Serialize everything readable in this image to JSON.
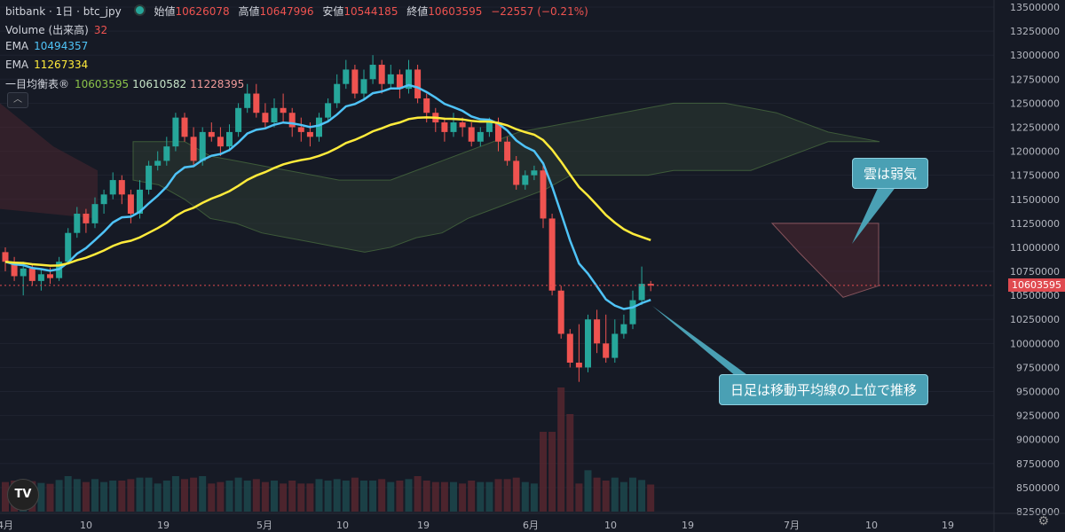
{
  "header": {
    "symbol": "bitbank · 1日 · btc_jpy",
    "open_label": "始値",
    "open": "10626078",
    "high_label": "高値",
    "high": "10647996",
    "low_label": "安値",
    "low": "10544185",
    "close_label": "終値",
    "close": "10603595",
    "change": "−22557 (−0.21%)"
  },
  "indicators": {
    "volume_label": "Volume (出来高)",
    "volume_value": "32",
    "ema1_label": "EMA",
    "ema1_value": "10494357",
    "ema2_label": "EMA",
    "ema2_value": "11267334",
    "ichimoku_label": "一目均衡表®",
    "ichimoku_v1": "10603595",
    "ichimoku_v2": "10610582",
    "ichimoku_v3": "11228395",
    "collapse_icon": "chevron-up-icon"
  },
  "annotations": {
    "cloud": "雲は弱気",
    "daily": "日足は移動平均線の上位で推移"
  },
  "price_tag": "10603595",
  "logo": "TV",
  "colors": {
    "up": "#26a69a",
    "down": "#ef5350",
    "ema_fast": "#4fc3f7",
    "ema_slow": "#ffeb3b",
    "callout": "#4aa0b4"
  },
  "chart_data": {
    "type": "candlestick",
    "yaxis_ticks": [
      "13500000",
      "13250000",
      "13000000",
      "12750000",
      "12500000",
      "12250000",
      "12000000",
      "11750000",
      "11500000",
      "11250000",
      "11000000",
      "10750000",
      "10500000",
      "10250000",
      "10000000",
      "9750000",
      "9500000",
      "9250000",
      "9000000",
      "8750000",
      "8500000",
      "8250000"
    ],
    "xaxis_ticks": [
      "4月",
      "10",
      "19",
      "5月",
      "10",
      "19",
      "6月",
      "10",
      "19",
      "7月",
      "10",
      "19"
    ],
    "ylim": [
      8250000,
      13500000
    ],
    "candles": [
      [
        10950000,
        10850000,
        11000000,
        10750000
      ],
      [
        10850000,
        10700000,
        10900000,
        10650000
      ],
      [
        10700000,
        10780000,
        10850000,
        10500000
      ],
      [
        10780000,
        10650000,
        10820000,
        10600000
      ],
      [
        10650000,
        10720000,
        10780000,
        10550000
      ],
      [
        10720000,
        10680000,
        10790000,
        10620000
      ],
      [
        10680000,
        10850000,
        10900000,
        10650000
      ],
      [
        10850000,
        11150000,
        11200000,
        10820000
      ],
      [
        11150000,
        11350000,
        11420000,
        11100000
      ],
      [
        11350000,
        11250000,
        11400000,
        11150000
      ],
      [
        11250000,
        11450000,
        11520000,
        11200000
      ],
      [
        11450000,
        11550000,
        11600000,
        11350000
      ],
      [
        11550000,
        11700000,
        11780000,
        11500000
      ],
      [
        11700000,
        11550000,
        11750000,
        11450000
      ],
      [
        11550000,
        11350000,
        11600000,
        11250000
      ],
      [
        11350000,
        11600000,
        11700000,
        11300000
      ],
      [
        11600000,
        11850000,
        11900000,
        11550000
      ],
      [
        11850000,
        11900000,
        12000000,
        11800000
      ],
      [
        11900000,
        12050000,
        12150000,
        11850000
      ],
      [
        12050000,
        12350000,
        12400000,
        12000000
      ],
      [
        12350000,
        12150000,
        12400000,
        12100000
      ],
      [
        12150000,
        11900000,
        12250000,
        11850000
      ],
      [
        11900000,
        12200000,
        12250000,
        11850000
      ],
      [
        12200000,
        12150000,
        12300000,
        12100000
      ],
      [
        12150000,
        12050000,
        12250000,
        11950000
      ],
      [
        12050000,
        12200000,
        12280000,
        12000000
      ],
      [
        12200000,
        12450000,
        12500000,
        12150000
      ],
      [
        12450000,
        12600000,
        12700000,
        12400000
      ],
      [
        12600000,
        12400000,
        12700000,
        12350000
      ],
      [
        12400000,
        12300000,
        12500000,
        12250000
      ],
      [
        12300000,
        12450000,
        12550000,
        12250000
      ],
      [
        12450000,
        12400000,
        12600000,
        12300000
      ],
      [
        12400000,
        12250000,
        12450000,
        12150000
      ],
      [
        12250000,
        12200000,
        12350000,
        12100000
      ],
      [
        12200000,
        12150000,
        12300000,
        12050000
      ],
      [
        12150000,
        12350000,
        12400000,
        12100000
      ],
      [
        12350000,
        12500000,
        12550000,
        12300000
      ],
      [
        12500000,
        12700000,
        12800000,
        12450000
      ],
      [
        12700000,
        12850000,
        12950000,
        12650000
      ],
      [
        12850000,
        12600000,
        12900000,
        12550000
      ],
      [
        12600000,
        12750000,
        12850000,
        12550000
      ],
      [
        12750000,
        12900000,
        13000000,
        12700000
      ],
      [
        12900000,
        12700000,
        12950000,
        12600000
      ],
      [
        12700000,
        12800000,
        12900000,
        12650000
      ],
      [
        12800000,
        12650000,
        12850000,
        12550000
      ],
      [
        12650000,
        12850000,
        12950000,
        12600000
      ],
      [
        12850000,
        12550000,
        12900000,
        12500000
      ],
      [
        12550000,
        12400000,
        12600000,
        12300000
      ],
      [
        12400000,
        12300000,
        12450000,
        12200000
      ],
      [
        12300000,
        12200000,
        12350000,
        12100000
      ],
      [
        12200000,
        12300000,
        12400000,
        12150000
      ],
      [
        12300000,
        12250000,
        12350000,
        12150000
      ],
      [
        12250000,
        12100000,
        12300000,
        12050000
      ],
      [
        12100000,
        12200000,
        12250000,
        12050000
      ],
      [
        12200000,
        12300000,
        12350000,
        12150000
      ],
      [
        12300000,
        12100000,
        12350000,
        12000000
      ],
      [
        12100000,
        11900000,
        12150000,
        11850000
      ],
      [
        11900000,
        11650000,
        11950000,
        11600000
      ],
      [
        11650000,
        11750000,
        11800000,
        11600000
      ],
      [
        11750000,
        11800000,
        11850000,
        11700000
      ],
      [
        11800000,
        11300000,
        11850000,
        11200000
      ],
      [
        11300000,
        10550000,
        11350000,
        10500000
      ],
      [
        10550000,
        10100000,
        10600000,
        10050000
      ],
      [
        10100000,
        9800000,
        10150000,
        9750000
      ],
      [
        9800000,
        9750000,
        10200000,
        9600000
      ],
      [
        9750000,
        10250000,
        10300000,
        9700000
      ],
      [
        10250000,
        10000000,
        10350000,
        9900000
      ],
      [
        10000000,
        9850000,
        10300000,
        9800000
      ],
      [
        9850000,
        10100000,
        10250000,
        9800000
      ],
      [
        10100000,
        10200000,
        10300000,
        10050000
      ],
      [
        10200000,
        10450000,
        10550000,
        10150000
      ],
      [
        10450000,
        10620000,
        10800000,
        10400000
      ],
      [
        10620000,
        10604000,
        10650000,
        10544000
      ]
    ]
  }
}
